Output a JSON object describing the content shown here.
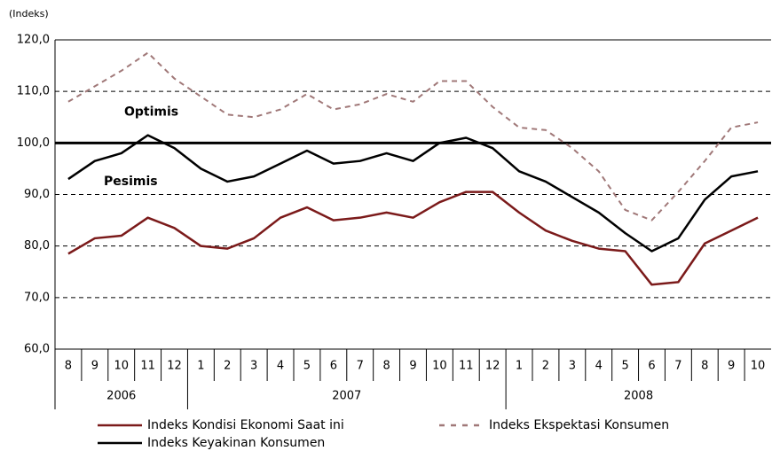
{
  "chart_data": {
    "type": "line",
    "y_axis_label": "(Indeks)",
    "categories": [
      "8",
      "9",
      "10",
      "11",
      "12",
      "1",
      "2",
      "3",
      "4",
      "5",
      "6",
      "7",
      "8",
      "9",
      "10",
      "11",
      "12",
      "1",
      "2",
      "3",
      "4",
      "5",
      "6",
      "7",
      "8",
      "9",
      "10"
    ],
    "groups": [
      {
        "label": "2006",
        "size": 5
      },
      {
        "label": "2007",
        "size": 12
      },
      {
        "label": "2008",
        "size": 10
      }
    ],
    "ylim": [
      60,
      120
    ],
    "yticks": [
      {
        "value": 60,
        "label": "60,0"
      },
      {
        "value": 70,
        "label": "70,0"
      },
      {
        "value": 80,
        "label": "80,0"
      },
      {
        "value": 90,
        "label": "90,0"
      },
      {
        "value": 100,
        "label": "100,0"
      },
      {
        "value": 110,
        "label": "110,0"
      },
      {
        "value": 120,
        "label": "120,0"
      }
    ],
    "grid": true,
    "reference_line": 100,
    "annotations": [
      {
        "text": "Optimis",
        "value": 106
      },
      {
        "text": "Pesimis",
        "value": 92.5
      }
    ],
    "legend": "bottom",
    "series": [
      {
        "name": "Indeks  Kondisi Ekonomi Saat ini",
        "color": "#7b1a1a",
        "dash": false,
        "values": [
          78.5,
          81.5,
          82,
          85.5,
          83.5,
          80,
          79.5,
          81.5,
          85.5,
          87.5,
          85,
          85.5,
          86.5,
          85.5,
          88.5,
          90.5,
          90.5,
          86.5,
          83,
          81,
          79.5,
          79,
          72.5,
          73,
          80.5,
          83,
          85.5
        ]
      },
      {
        "name": "Indeks Ekspektasi Konsumen",
        "color": "#a07878",
        "dash": true,
        "values": [
          108,
          111,
          114,
          117.5,
          112.5,
          109,
          105.5,
          105,
          106.5,
          109.5,
          106.5,
          107.5,
          109.5,
          108,
          112,
          112,
          107,
          103,
          102.5,
          99,
          94.5,
          87,
          85,
          90.5,
          96.5,
          103,
          104
        ]
      },
      {
        "name": "Indeks Keyakinan Konsumen",
        "color": "#000000",
        "dash": false,
        "values": [
          93,
          96.5,
          98,
          101.5,
          99,
          95,
          92.5,
          93.5,
          96,
          98.5,
          96,
          96.5,
          98,
          96.5,
          100,
          101,
          99,
          94.5,
          92.5,
          89.5,
          86.5,
          82.5,
          79,
          81.5,
          89,
          93.5,
          94.5
        ]
      }
    ]
  }
}
